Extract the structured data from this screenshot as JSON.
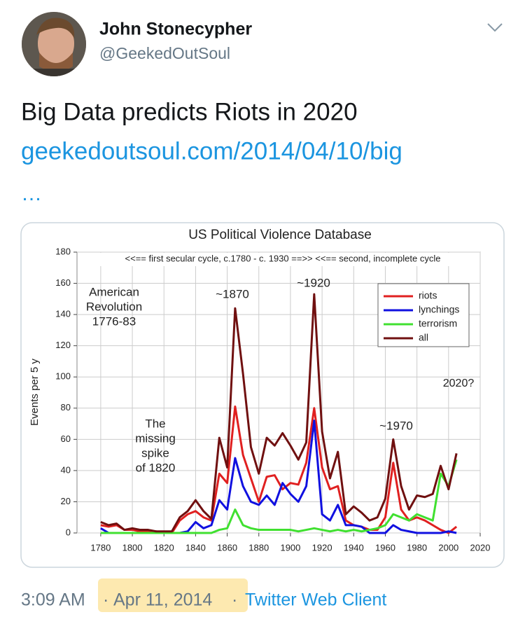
{
  "tweet": {
    "name": "John Stonecypher",
    "handle": "@GeekedOutSoul",
    "text": "Big Data predicts Riots in 2020",
    "link": "geekedoutsoul.com/2014/04/10/big",
    "ellipsis": "…",
    "time": "3:09 AM",
    "separator": "·",
    "date": "Apr 11, 2014",
    "client": "Twitter Web Client"
  },
  "chart_data": {
    "type": "line",
    "title": "US Political Violence Database",
    "ylabel": "Events per 5 y",
    "annotations": [
      {
        "lines": [
          "<<== first secular cycle, c.1780 - c. 1930 ==>> <<== second, incomplete cycle"
        ]
      },
      {
        "lines": [
          "American",
          "Revolution",
          "1776-83"
        ]
      },
      {
        "lines": [
          "~1870"
        ]
      },
      {
        "lines": [
          "~1920"
        ]
      },
      {
        "lines": [
          "The",
          "missing",
          "spike",
          "of 1820"
        ]
      },
      {
        "lines": [
          "~1970"
        ]
      },
      {
        "lines": [
          "2020?"
        ]
      }
    ],
    "x": [
      1780,
      1785,
      1790,
      1795,
      1800,
      1805,
      1810,
      1815,
      1820,
      1825,
      1830,
      1835,
      1840,
      1845,
      1850,
      1855,
      1860,
      1865,
      1870,
      1875,
      1880,
      1885,
      1890,
      1895,
      1900,
      1905,
      1910,
      1915,
      1920,
      1925,
      1930,
      1935,
      1940,
      1945,
      1950,
      1955,
      1960,
      1965,
      1970,
      1975,
      1980,
      1985,
      1990,
      1995,
      2000,
      2005
    ],
    "series": [
      {
        "name": "riots",
        "color": "#e02020",
        "values": [
          5,
          4,
          5,
          2,
          2,
          1,
          1,
          1,
          0,
          0,
          8,
          12,
          14,
          10,
          8,
          38,
          32,
          81,
          50,
          35,
          20,
          36,
          37,
          28,
          32,
          31,
          45,
          80,
          42,
          28,
          30,
          8,
          5,
          4,
          2,
          2,
          10,
          45,
          15,
          8,
          10,
          8,
          5,
          2,
          0,
          4
        ]
      },
      {
        "name": "lynchings",
        "color": "#1010e0",
        "values": [
          3,
          0,
          0,
          0,
          0,
          0,
          0,
          0,
          0,
          0,
          0,
          1,
          7,
          3,
          5,
          21,
          15,
          48,
          30,
          20,
          18,
          24,
          18,
          32,
          25,
          20,
          30,
          72,
          12,
          8,
          18,
          5,
          5,
          4,
          0,
          0,
          0,
          5,
          2,
          1,
          0,
          0,
          0,
          0,
          1,
          0
        ]
      },
      {
        "name": "terrorism",
        "color": "#40e030",
        "values": [
          0,
          0,
          0,
          0,
          0,
          0,
          0,
          0,
          0,
          0,
          0,
          0,
          0,
          0,
          0,
          2,
          3,
          15,
          5,
          3,
          2,
          2,
          2,
          2,
          2,
          1,
          2,
          3,
          2,
          1,
          2,
          1,
          2,
          1,
          2,
          3,
          5,
          12,
          10,
          8,
          12,
          10,
          8,
          38,
          30,
          47
        ]
      },
      {
        "name": "all",
        "color": "#701010",
        "values": [
          7,
          5,
          6,
          2,
          3,
          2,
          2,
          1,
          1,
          1,
          10,
          14,
          21,
          14,
          9,
          61,
          42,
          144,
          102,
          55,
          38,
          61,
          56,
          64,
          56,
          47,
          58,
          153,
          65,
          35,
          52,
          12,
          17,
          13,
          8,
          10,
          22,
          60,
          30,
          15,
          24,
          23,
          25,
          43,
          28,
          51
        ]
      }
    ],
    "xlim": [
      1765,
      2020
    ],
    "xticks": [
      1780,
      1800,
      1820,
      1840,
      1860,
      1880,
      1900,
      1920,
      1940,
      1960,
      1980,
      2000,
      2020
    ],
    "ylim": [
      0,
      180
    ],
    "yticks": [
      0,
      20,
      40,
      60,
      80,
      100,
      120,
      140,
      160,
      180
    ],
    "grid": true,
    "legend": "upper right"
  }
}
